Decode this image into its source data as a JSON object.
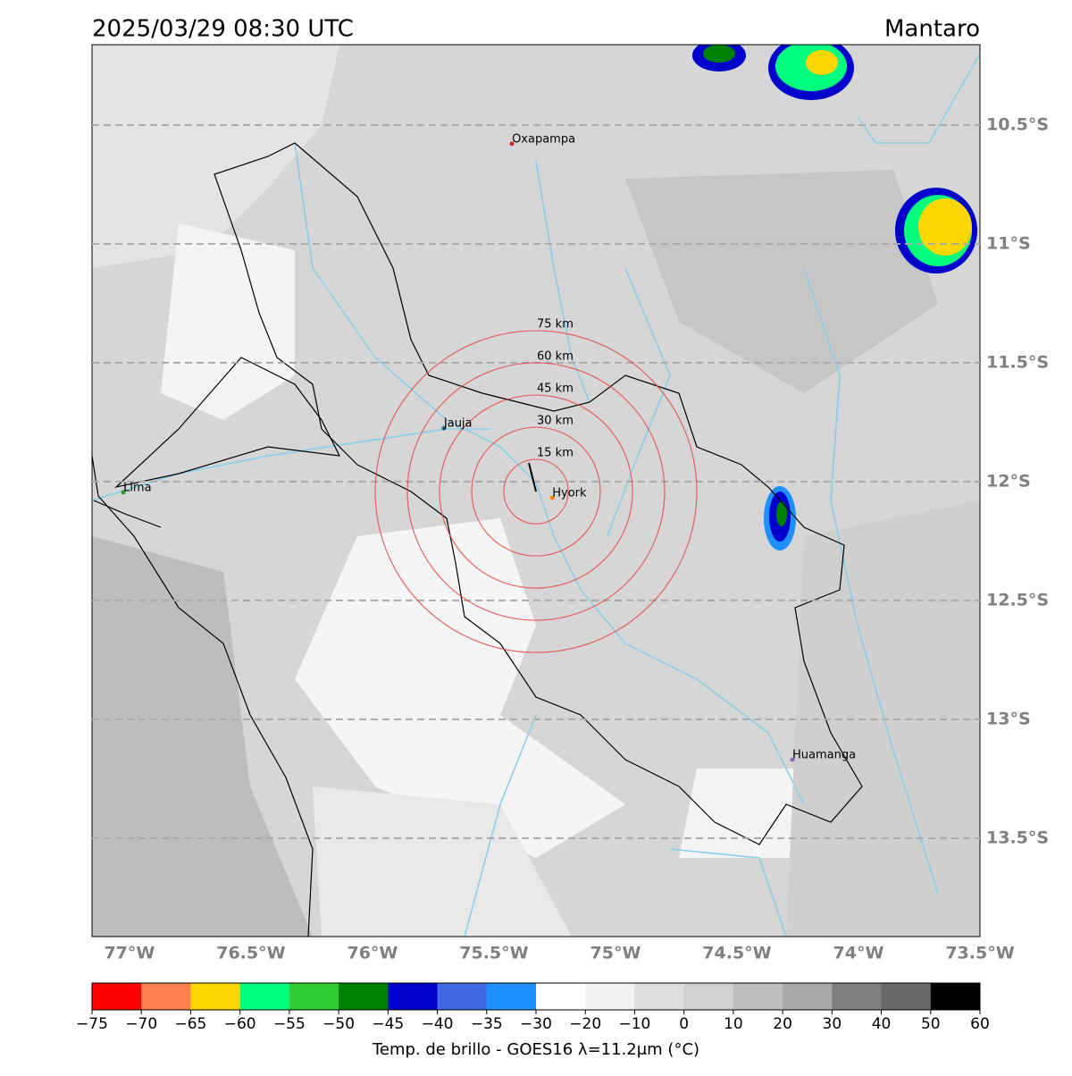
{
  "header": {
    "title": "2025/03/29 08:30 UTC",
    "region": "Mantaro"
  },
  "map": {
    "lon_range": [
      -77.154,
      -73.5
    ],
    "lat_range": [
      -10.162,
      -13.914
    ],
    "lat_ticks": [
      {
        "value": -10.5,
        "label": "10.5°S"
      },
      {
        "value": -11,
        "label": "11°S"
      },
      {
        "value": -11.5,
        "label": "11.5°S"
      },
      {
        "value": -12,
        "label": "12°S"
      },
      {
        "value": -12.5,
        "label": "12.5°S"
      },
      {
        "value": -13,
        "label": "13°S"
      },
      {
        "value": -13.5,
        "label": "13.5°S"
      }
    ],
    "lon_ticks": [
      {
        "value": -77,
        "label": "77°W"
      },
      {
        "value": -76.5,
        "label": "76.5°W"
      },
      {
        "value": -76,
        "label": "76°W"
      },
      {
        "value": -75.5,
        "label": "75.5°W"
      },
      {
        "value": -75,
        "label": "75°W"
      },
      {
        "value": -74.5,
        "label": "74.5°W"
      },
      {
        "value": -74,
        "label": "74°W"
      },
      {
        "value": -73.5,
        "label": "73.5°W"
      }
    ],
    "cities": [
      {
        "name": "Oxapampa",
        "lon": -75.426,
        "lat": -10.579,
        "color": "#d62728"
      },
      {
        "name": "Jauja",
        "lon": -75.706,
        "lat": -11.775,
        "color": "#1f77b4"
      },
      {
        "name": "Hyork",
        "lon": -75.26,
        "lat": -12.068,
        "color": "#ff7f0e"
      },
      {
        "name": "Lima",
        "lon": -77.025,
        "lat": -12.045,
        "color": "#2ca02c"
      },
      {
        "name": "Huamanga",
        "lon": -74.272,
        "lat": -13.17,
        "color": "#9467bd"
      }
    ],
    "ring_center": {
      "lon": -75.327,
      "lat": -12.042
    },
    "rings": [
      {
        "value": 15,
        "label": "15 km"
      },
      {
        "value": 30,
        "label": "30 km"
      },
      {
        "value": 45,
        "label": "45 km"
      },
      {
        "value": 60,
        "label": "60 km"
      },
      {
        "value": 75,
        "label": "75 km"
      }
    ]
  },
  "colorbar": {
    "label": "Temp. de brillo - GOES16 λ=11.2μm (°C)",
    "ticks": [
      {
        "value": -75,
        "label": "−75"
      },
      {
        "value": -70,
        "label": "−70"
      },
      {
        "value": -65,
        "label": "−65"
      },
      {
        "value": -60,
        "label": "−60"
      },
      {
        "value": -55,
        "label": "−55"
      },
      {
        "value": -50,
        "label": "−50"
      },
      {
        "value": -45,
        "label": "−45"
      },
      {
        "value": -40,
        "label": "−40"
      },
      {
        "value": -35,
        "label": "−35"
      },
      {
        "value": -30,
        "label": "−30"
      },
      {
        "value": -20,
        "label": "−20"
      },
      {
        "value": -10,
        "label": "−10"
      },
      0,
      10,
      20,
      30,
      40,
      50,
      60
    ],
    "colors": [
      "#ff0000",
      "#ff7f50",
      "#ffd700",
      "#00ff7f",
      "#32cd32",
      "#008000",
      "#0000cd",
      "#4169e1",
      "#1e90ff",
      "#ffffff",
      "#f2f2f2",
      "#dcdcdc",
      "#d0d0d0",
      "#bebebe",
      "#a9a9a9",
      "#808080",
      "#696969",
      "#000000"
    ]
  }
}
